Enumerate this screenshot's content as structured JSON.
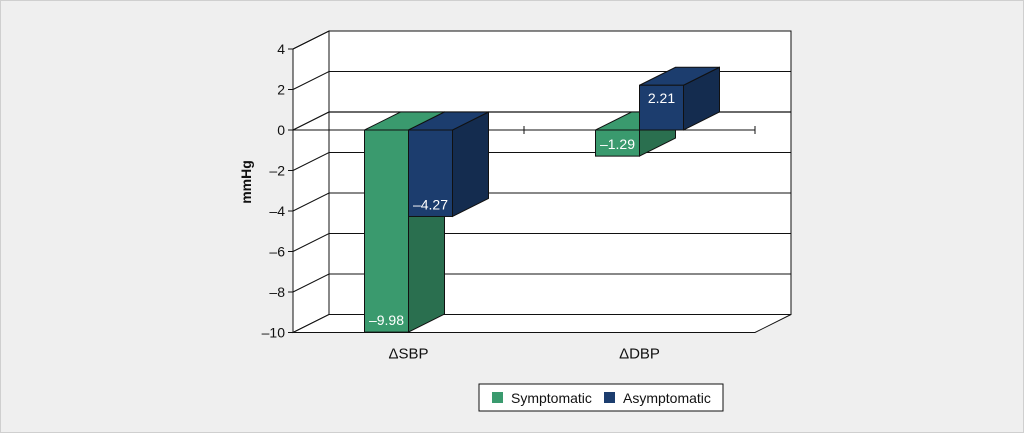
{
  "chart_data": {
    "type": "bar",
    "categories": [
      "ΔSBP",
      "ΔDBP"
    ],
    "series": [
      {
        "name": "Symptomatic",
        "values": [
          -9.98,
          -1.29
        ],
        "labels": [
          "–9.98",
          "–1.29"
        ],
        "color": "#3a9a6e"
      },
      {
        "name": "Asymptomatic",
        "values": [
          -4.27,
          2.21
        ],
        "labels": [
          "–4.27",
          "2.21"
        ],
        "color": "#1c3d6e"
      }
    ],
    "yticks": [
      "4",
      "2",
      "0",
      "–2",
      "–4",
      "–6",
      "–8",
      "–10"
    ],
    "ytick_values": [
      4,
      2,
      0,
      -2,
      -4,
      -6,
      -8,
      -10
    ],
    "ylabel": "mmHg",
    "xlabel": "",
    "ylim": [
      -10,
      4
    ],
    "grid": true,
    "style": "3d-clustered",
    "legend_position": "bottom"
  }
}
